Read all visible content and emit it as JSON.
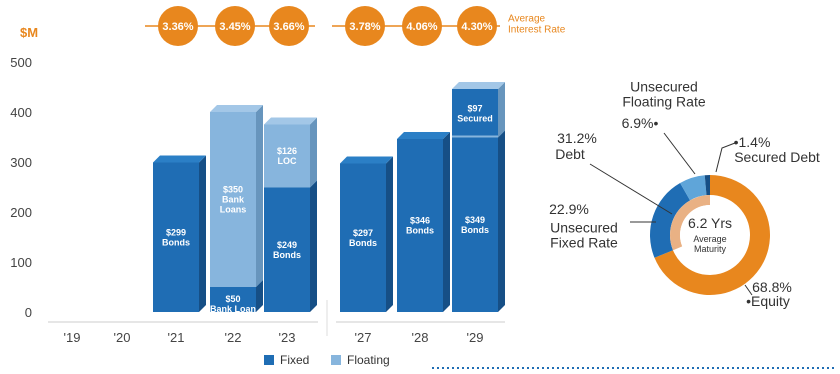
{
  "colors": {
    "fixed": "#1f6db4",
    "fixed_side": "#164f86",
    "fixed_top": "#2b7fc6",
    "floating": "#87b5dd",
    "floating_side": "#6795bd",
    "floating_top": "#a3c7e7",
    "orange": "#e8871e",
    "orange_light": "#e9b184",
    "blue_light": "#5fa5d9",
    "text": "#333333",
    "axis": "#444444",
    "dotted": "#1f6db4"
  },
  "chart_data": [
    {
      "type": "bar",
      "unit_label": "$M",
      "ylim": [
        0,
        500
      ],
      "yticks": [
        "500",
        "400",
        "300",
        "200",
        "100",
        "0"
      ],
      "ytick_values": [
        500,
        400,
        300,
        200,
        100,
        0
      ],
      "categories": [
        "'19",
        "'20",
        "'21",
        "'22",
        "'23",
        "'27",
        "'28",
        "'29"
      ],
      "series": [
        {
          "name": "Fixed",
          "values": [
            0,
            0,
            299,
            50,
            249,
            297,
            346,
            349
          ]
        },
        {
          "name": "Floating",
          "values": [
            0,
            0,
            0,
            350,
            126,
            0,
            0,
            97
          ]
        }
      ],
      "segment_labels": [
        {
          "category": "'21",
          "series": "Fixed",
          "label": "$299\nBonds"
        },
        {
          "category": "'22",
          "series": "Fixed",
          "label": "$50\nBank Loan"
        },
        {
          "category": "'22",
          "series": "Floating",
          "label": "$350\nBank\nLoans"
        },
        {
          "category": "'23",
          "series": "Fixed",
          "label": "$249\nBonds"
        },
        {
          "category": "'23",
          "series": "Floating",
          "label": "$126\nLOC"
        },
        {
          "category": "'27",
          "series": "Fixed",
          "label": "$297\nBonds"
        },
        {
          "category": "'28",
          "series": "Fixed",
          "label": "$346\nBonds"
        },
        {
          "category": "'29",
          "series": "Fixed",
          "label": "$349\nBonds"
        },
        {
          "category": "'29",
          "series": "Floating",
          "label": "$97\nSecured"
        }
      ],
      "rate_label": "Average\nInterest Rate",
      "average_interest_rates": [
        {
          "category": "'21",
          "label": "3.36%"
        },
        {
          "category": "'22",
          "label": "3.45%"
        },
        {
          "category": "'23",
          "label": "3.66%"
        },
        {
          "category": "'27",
          "label": "3.78%"
        },
        {
          "category": "'28",
          "label": "4.06%"
        },
        {
          "category": "'29",
          "label": "4.30%"
        }
      ],
      "legend": [
        "Fixed",
        "Floating"
      ],
      "legend_placement": "bottom",
      "grid": false
    },
    {
      "type": "pie",
      "donut": true,
      "center_label": "6.2 Yrs",
      "center_sublabel": "Average\nMaturity",
      "slices": [
        {
          "label": "Equity",
          "pct_label": "68.8%",
          "value": 68.8,
          "color": "#e8871e"
        },
        {
          "label": "Unsecured\nFixed Rate",
          "pct_label": "22.9%",
          "value": 22.9,
          "color": "#1f6db4"
        },
        {
          "label": "Unsecured\nFloating Rate",
          "pct_label": "6.9%",
          "value": 6.9,
          "color": "#5fa5d9"
        },
        {
          "label": "Secured Debt",
          "pct_label": "1.4%",
          "value": 1.4,
          "color": "#164f86"
        }
      ],
      "group_label": {
        "pct_label": "31.2%",
        "label": "Debt"
      }
    }
  ]
}
